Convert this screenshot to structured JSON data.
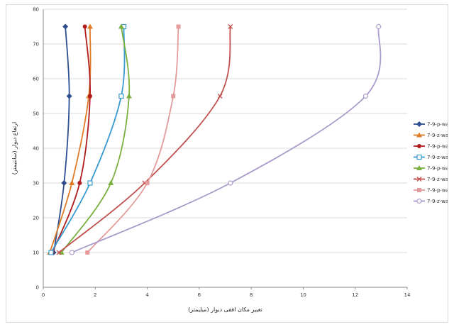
{
  "chart_data": {
    "type": "line",
    "title": "",
    "xlabel": "تغییر مکان افقی دیوار (میلیمتر)",
    "ylabel": "ارتفاع دیوار (سانتیمتر)",
    "xlim": [
      0,
      14
    ],
    "ylim": [
      0,
      80
    ],
    "x_ticks": [
      0,
      2,
      4,
      6,
      8,
      10,
      12,
      14
    ],
    "y_ticks": [
      0,
      10,
      20,
      30,
      40,
      50,
      60,
      70,
      80
    ],
    "grid": "horizontal",
    "legend_position": "right",
    "series": [
      {
        "name": "7-9-p-wa1",
        "color": "#2e4f8f",
        "marker": "diamond",
        "points": [
          [
            0.4,
            10
          ],
          [
            0.8,
            30
          ],
          [
            1.0,
            55
          ],
          [
            0.85,
            75
          ]
        ]
      },
      {
        "name": "7-9-z-wa1",
        "color": "#e07b28",
        "marker": "triangle",
        "points": [
          [
            0.25,
            10
          ],
          [
            1.1,
            30
          ],
          [
            1.75,
            55
          ],
          [
            1.8,
            75
          ]
        ]
      },
      {
        "name": "7-9-p-wa2",
        "color": "#b01c1c",
        "marker": "circle",
        "points": [
          [
            0.35,
            10
          ],
          [
            1.4,
            30
          ],
          [
            1.8,
            55
          ],
          [
            1.6,
            75
          ]
        ]
      },
      {
        "name": "7-9-z-wa2",
        "color": "#3a9bd1",
        "marker": "square-open",
        "points": [
          [
            0.3,
            10
          ],
          [
            1.8,
            30
          ],
          [
            3.0,
            55
          ],
          [
            3.1,
            75
          ]
        ]
      },
      {
        "name": "7-9-p-wa3",
        "color": "#7ab040",
        "marker": "triangle",
        "points": [
          [
            0.7,
            10
          ],
          [
            2.6,
            30
          ],
          [
            3.3,
            55
          ],
          [
            3.0,
            75
          ]
        ]
      },
      {
        "name": "7-9-z-wa3",
        "color": "#c0504d",
        "marker": "x",
        "points": [
          [
            0.6,
            10
          ],
          [
            3.9,
            30
          ],
          [
            6.8,
            55
          ],
          [
            7.2,
            75
          ]
        ]
      },
      {
        "name": "7-9-p-wa4",
        "color": "#e39b9b",
        "marker": "square",
        "points": [
          [
            1.7,
            10
          ],
          [
            4.0,
            30
          ],
          [
            5.0,
            55
          ],
          [
            5.2,
            75
          ]
        ]
      },
      {
        "name": "7-9-z-wa4",
        "color": "#a99acb",
        "marker": "circle-open",
        "points": [
          [
            1.1,
            10
          ],
          [
            7.2,
            30
          ],
          [
            12.4,
            55
          ],
          [
            12.9,
            75
          ]
        ]
      }
    ]
  }
}
